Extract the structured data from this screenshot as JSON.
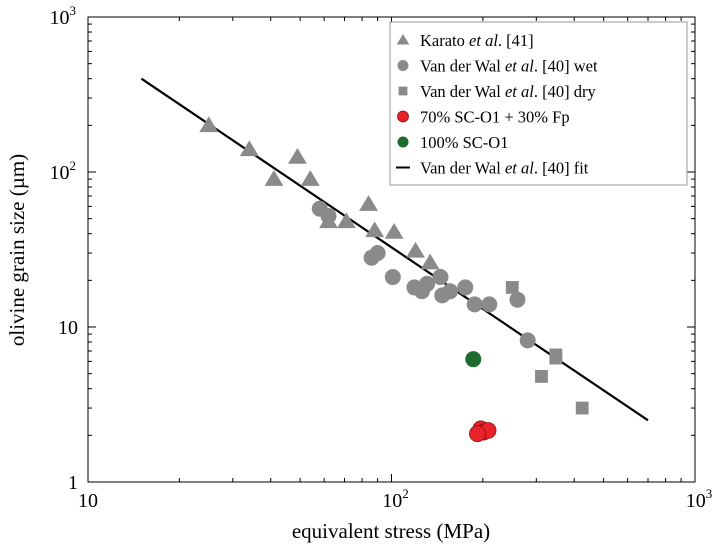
{
  "chart_data": {
    "type": "scatter",
    "xscale": "log",
    "yscale": "log",
    "xlim": [
      10,
      1000
    ],
    "ylim": [
      1,
      1000
    ],
    "grid": false,
    "legend_position": "top-right",
    "x_tick_labels": [
      {
        "base": "10",
        "exp": ""
      },
      {
        "base": "10",
        "exp": "2"
      },
      {
        "base": "10",
        "exp": "3"
      }
    ],
    "y_tick_labels": [
      {
        "base": "1",
        "exp": ""
      },
      {
        "base": "10",
        "exp": ""
      },
      {
        "base": "10",
        "exp": "2"
      },
      {
        "base": "10",
        "exp": "3"
      }
    ],
    "xlabel": "equivalent stress (MPa)",
    "ylabel": "olivine grain size (µm)",
    "series": [
      {
        "name": "Karato et al. [41]",
        "marker": "triangle",
        "color": "#8a8a8a",
        "points": [
          [
            25,
            200
          ],
          [
            34,
            140
          ],
          [
            41,
            90
          ],
          [
            49,
            125
          ],
          [
            54,
            90
          ],
          [
            62,
            48
          ],
          [
            71,
            48
          ],
          [
            84,
            62
          ],
          [
            88,
            42
          ],
          [
            102,
            41
          ],
          [
            120,
            31
          ],
          [
            134,
            26
          ]
        ]
      },
      {
        "name": "Van der Wal et al. [40] wet",
        "marker": "circle",
        "color": "#8a8a8a",
        "points": [
          [
            58,
            58
          ],
          [
            62,
            52
          ],
          [
            86,
            28
          ],
          [
            90,
            30
          ],
          [
            101,
            21
          ],
          [
            119,
            18
          ],
          [
            126,
            17
          ],
          [
            131,
            19
          ],
          [
            145,
            21
          ],
          [
            147,
            16
          ],
          [
            156,
            17
          ],
          [
            175,
            18
          ],
          [
            188,
            14
          ],
          [
            210,
            14
          ],
          [
            260,
            15
          ],
          [
            281,
            8.2
          ]
        ]
      },
      {
        "name": "Van der Wal et al. [40] dry",
        "marker": "square",
        "color": "#8a8a8a",
        "points": [
          [
            250,
            18
          ],
          [
            312,
            4.8
          ],
          [
            348,
            6.6
          ],
          [
            348,
            6.3
          ],
          [
            425,
            3.0
          ]
        ]
      },
      {
        "name": "70% SC-O1 + 30% Fp",
        "marker": "circle",
        "color": "#e8222a",
        "points": [
          [
            197,
            2.2
          ],
          [
            201,
            2.1
          ],
          [
            208,
            2.15
          ],
          [
            192,
            2.05
          ]
        ]
      },
      {
        "name": "100% SC-O1",
        "marker": "circle",
        "color": "#1e6b2e",
        "points": [
          [
            186,
            6.2
          ]
        ]
      },
      {
        "name": "Van der Wal et al. [40] fit",
        "marker": "line",
        "color": "#000000",
        "points": [
          [
            15,
            400
          ],
          [
            700,
            2.5
          ]
        ]
      }
    ],
    "legend": [
      {
        "marker": "triangle",
        "color": "#8a8a8a",
        "pre": "Karato ",
        "ital": "et al",
        "post": ". [41]"
      },
      {
        "marker": "circle",
        "color": "#8a8a8a",
        "pre": "Van der Wal ",
        "ital": "et al",
        "post": ". [40] wet"
      },
      {
        "marker": "square",
        "color": "#8a8a8a",
        "pre": "Van der Wal ",
        "ital": "et al",
        "post": ". [40] dry"
      },
      {
        "marker": "circle",
        "color": "#e8222a",
        "pre": "70% SC-O1 + 30% Fp",
        "ital": "",
        "post": ""
      },
      {
        "marker": "circle",
        "color": "#1e6b2e",
        "pre": "100% SC-O1",
        "ital": "",
        "post": ""
      },
      {
        "marker": "line",
        "color": "#000000",
        "pre": "Van der Wal ",
        "ital": "et al",
        "post": ". [40] fit"
      }
    ]
  }
}
